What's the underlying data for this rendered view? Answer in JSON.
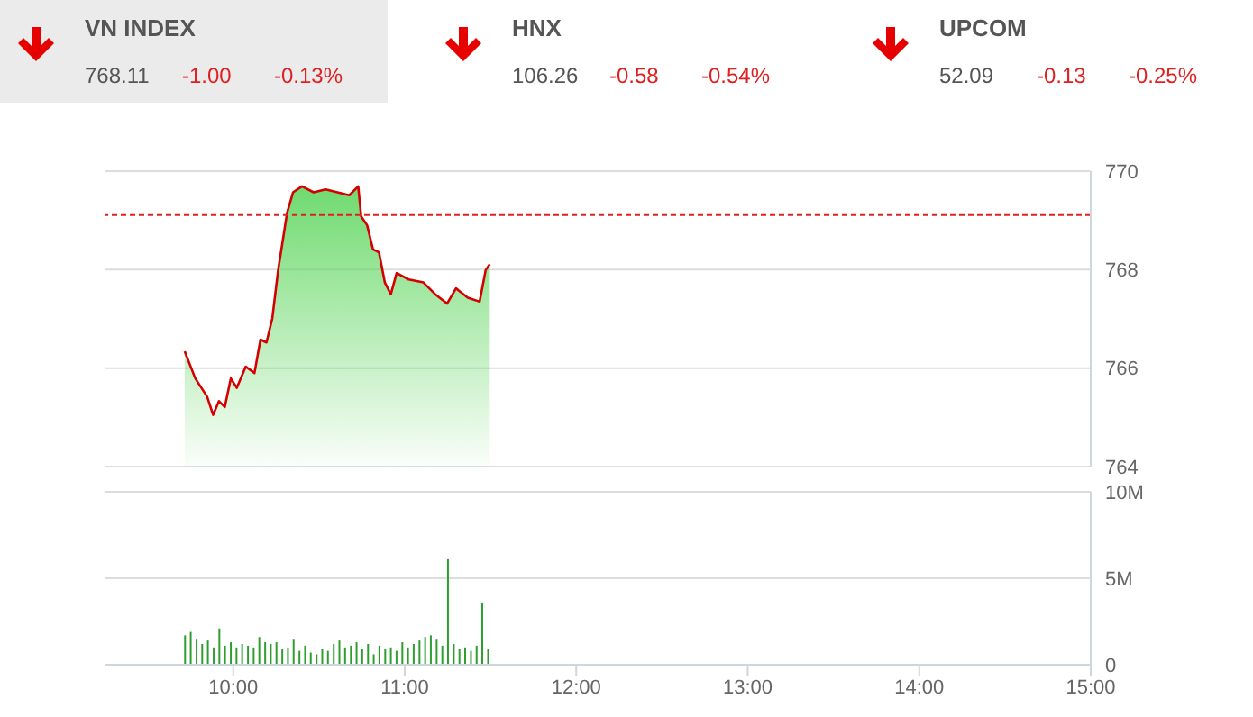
{
  "chart_data": [
    {
      "type": "other",
      "categories": [
        "VN INDEX",
        "HNX",
        "UPCOM"
      ],
      "series": [
        {
          "values": [
            768.11,
            106.26,
            52.09
          ],
          "value_labels": [
            "768.11",
            "106.26",
            "52.09"
          ]
        },
        {
          "color": "#e02020",
          "values": [
            -1.0,
            -0.58,
            -0.13
          ],
          "value_labels": [
            "-1.00",
            "-0.58",
            "-0.13"
          ]
        },
        {
          "color": "#e02020",
          "values": [
            -0.13,
            -0.54,
            -0.25
          ],
          "value_labels": [
            "-0.13%",
            "-0.54%",
            "-0.25%"
          ]
        }
      ]
    },
    {
      "type": "area",
      "x": [
        9.717,
        9.779,
        9.848,
        9.883,
        9.917,
        9.951,
        9.986,
        10.021,
        10.073,
        10.124,
        10.159,
        10.194,
        10.228,
        10.262,
        10.314,
        10.349,
        10.401,
        10.469,
        10.539,
        10.608,
        10.677,
        10.729,
        10.746,
        10.781,
        10.815,
        10.85,
        10.884,
        10.919,
        10.953,
        11.023,
        11.109,
        11.178,
        11.247,
        11.299,
        11.368,
        11.437,
        11.472,
        11.496
      ],
      "series": [
        {
          "color": "#d40000",
          "values": [
            766.34,
            765.79,
            765.42,
            765.05,
            765.33,
            765.21,
            765.79,
            765.6,
            766.03,
            765.9,
            766.58,
            766.52,
            767.01,
            767.99,
            769.15,
            769.57,
            769.69,
            769.57,
            769.63,
            769.57,
            769.51,
            769.69,
            769.08,
            768.9,
            768.41,
            768.35,
            767.74,
            767.5,
            767.93,
            767.8,
            767.74,
            767.5,
            767.31,
            767.62,
            767.43,
            767.35,
            767.99,
            768.11
          ]
        }
      ],
      "xlim": [
        9.25,
        15
      ],
      "ylim": [
        764,
        770
      ],
      "yticks": [
        764,
        766,
        768,
        770
      ],
      "grid": "y",
      "tick_labels": "y",
      "ref_lines": [
        {
          "axis": "y",
          "value": 769.11,
          "color": "#e02020",
          "line_style": "dashed"
        }
      ]
    },
    {
      "type": "bar",
      "x": [
        9.72,
        9.753,
        9.787,
        9.82,
        9.853,
        9.887,
        9.92,
        9.953,
        9.987,
        10.02,
        10.053,
        10.087,
        10.12,
        10.153,
        10.187,
        10.22,
        10.253,
        10.287,
        10.32,
        10.353,
        10.387,
        10.42,
        10.453,
        10.487,
        10.52,
        10.553,
        10.587,
        10.62,
        10.653,
        10.687,
        10.72,
        10.753,
        10.787,
        10.82,
        10.853,
        10.887,
        10.92,
        10.953,
        10.987,
        11.02,
        11.053,
        11.087,
        11.12,
        11.153,
        11.187,
        11.22,
        11.253,
        11.287,
        11.32,
        11.353,
        11.387,
        11.42,
        11.453,
        11.487
      ],
      "series": [
        {
          "color": "#2e9e2e",
          "values": [
            1.7,
            1.9,
            1.5,
            1.2,
            1.4,
            1.0,
            2.1,
            1.1,
            1.3,
            1.0,
            1.2,
            1.1,
            1.0,
            1.6,
            1.3,
            1.2,
            1.3,
            0.9,
            1.0,
            1.5,
            0.8,
            1.1,
            0.7,
            0.6,
            0.9,
            0.8,
            1.2,
            1.4,
            1.0,
            1.1,
            1.3,
            0.9,
            1.2,
            0.6,
            1.1,
            0.9,
            1.0,
            0.8,
            1.3,
            1.0,
            1.2,
            1.4,
            1.6,
            1.7,
            1.5,
            1.1,
            6.1,
            1.2,
            0.9,
            1.0,
            0.8,
            1.1,
            3.6,
            0.9
          ]
        }
      ],
      "xlim": [
        9.25,
        15
      ],
      "xticks": [
        {
          "value": 10,
          "label": "10:00"
        },
        {
          "value": 11,
          "label": "11:00"
        },
        {
          "value": 12,
          "label": "12:00"
        },
        {
          "value": 13,
          "label": "13:00"
        },
        {
          "value": 14,
          "label": "14:00"
        },
        {
          "value": 15,
          "label": "15:00"
        }
      ],
      "ylim": [
        0,
        10
      ],
      "yticks": [
        0,
        {
          "value": 5,
          "label": "5M"
        },
        {
          "value": 10,
          "label": "10M"
        }
      ],
      "grid": "y"
    }
  ]
}
